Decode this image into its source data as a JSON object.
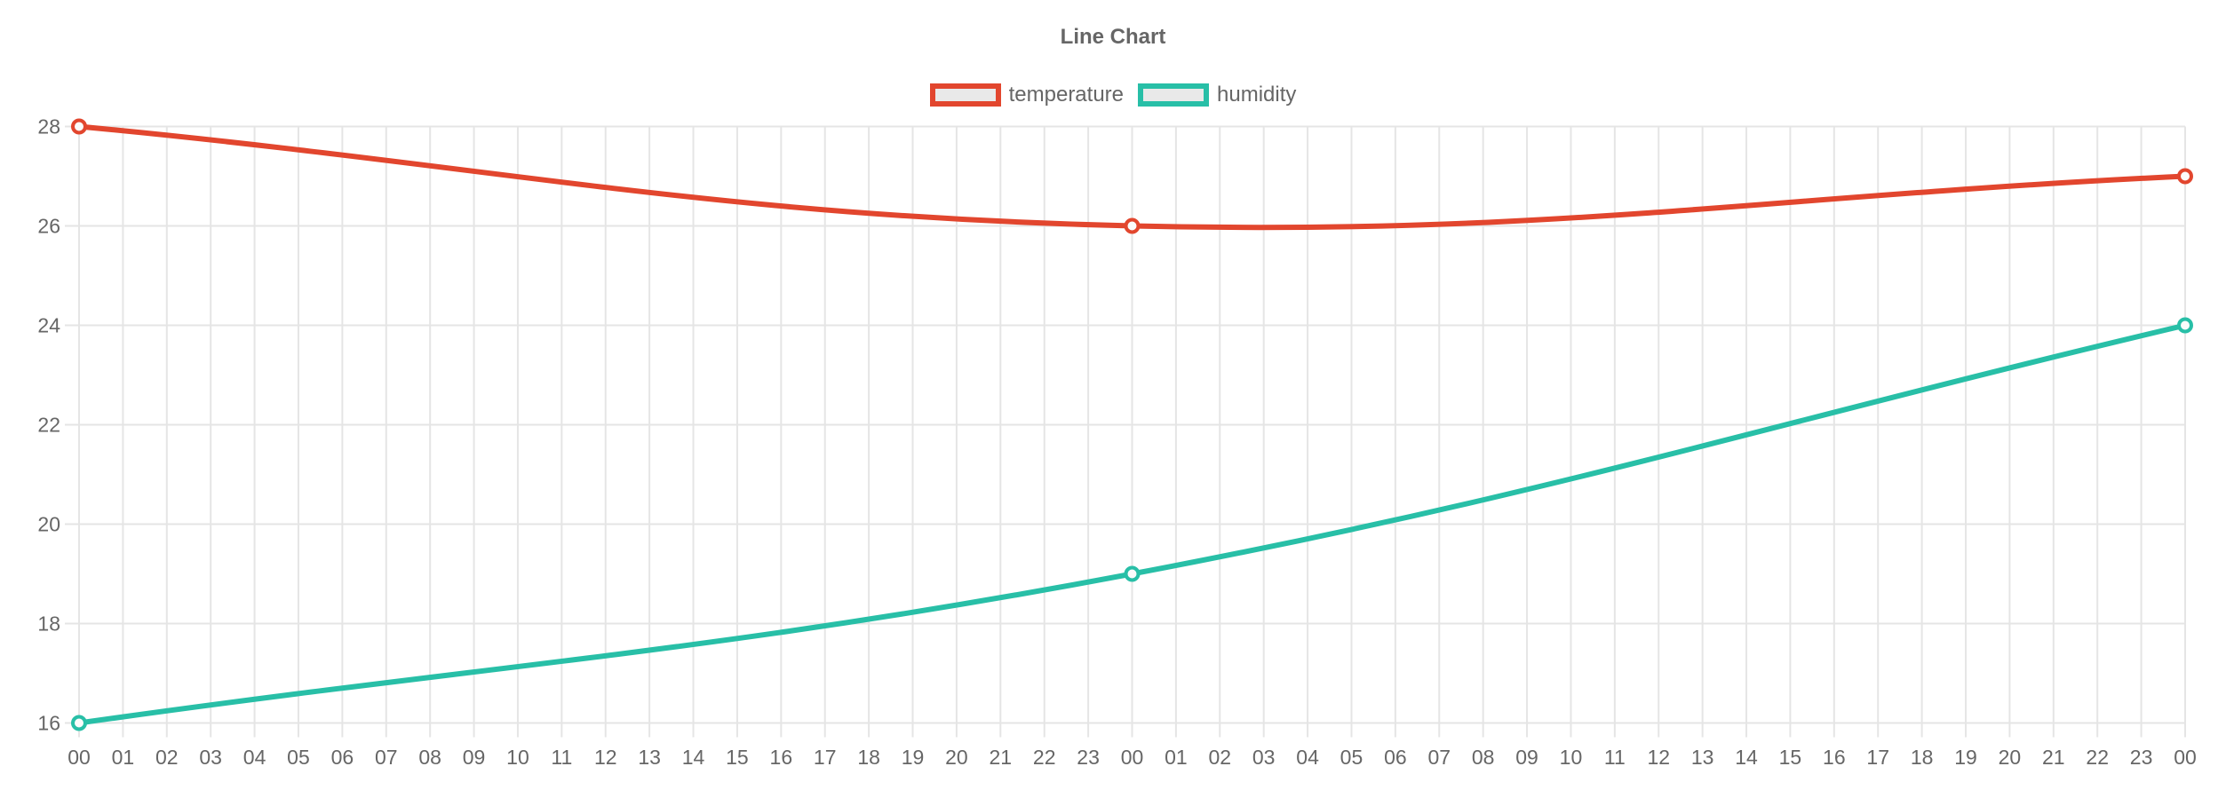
{
  "chart_data": {
    "type": "line",
    "title": "Line Chart",
    "legend_position": "top",
    "grid": true,
    "smooth": true,
    "categories": [
      "00",
      "01",
      "02",
      "03",
      "04",
      "05",
      "06",
      "07",
      "08",
      "09",
      "10",
      "11",
      "12",
      "13",
      "14",
      "15",
      "16",
      "17",
      "18",
      "19",
      "20",
      "21",
      "22",
      "23",
      "00",
      "01",
      "02",
      "03",
      "04",
      "05",
      "06",
      "07",
      "08",
      "09",
      "10",
      "11",
      "12",
      "13",
      "14",
      "15",
      "16",
      "17",
      "18",
      "19",
      "20",
      "21",
      "22",
      "23",
      "00"
    ],
    "ylim": [
      16,
      28
    ],
    "y_tick_step": 2,
    "y_tick_labels": [
      "16",
      "18",
      "20",
      "22",
      "24",
      "26",
      "28"
    ],
    "series": [
      {
        "name": "temperature",
        "color": "#e2462e",
        "point_indices": [
          0,
          24,
          48
        ],
        "values": [
          28,
          26,
          27
        ]
      },
      {
        "name": "humidity",
        "color": "#28bfa7",
        "point_indices": [
          0,
          24,
          48
        ],
        "values": [
          16,
          19,
          24
        ]
      }
    ],
    "colors": {
      "grid": "#e5e5e5",
      "text": "#666666",
      "legend_box_fill": "#e9e9e9",
      "point_fill": "#fbfbfb"
    }
  }
}
